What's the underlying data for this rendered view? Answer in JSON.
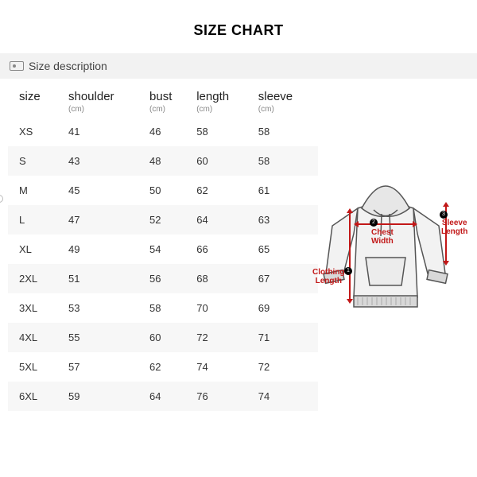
{
  "title": "SIZE CHART",
  "description_label": "Size description",
  "table": {
    "columns": [
      {
        "label": "size",
        "unit": ""
      },
      {
        "label": "shoulder",
        "unit": "(cm)"
      },
      {
        "label": "bust",
        "unit": "(cm)"
      },
      {
        "label": "length",
        "unit": "(cm)"
      },
      {
        "label": "sleeve",
        "unit": "(cm)"
      }
    ],
    "rows": [
      [
        "XS",
        "41",
        "46",
        "58",
        "58"
      ],
      [
        "S",
        "43",
        "48",
        "60",
        "58"
      ],
      [
        "M",
        "45",
        "50",
        "62",
        "61"
      ],
      [
        "L",
        "47",
        "52",
        "64",
        "63"
      ],
      [
        "XL",
        "49",
        "54",
        "66",
        "65"
      ],
      [
        "2XL",
        "51",
        "56",
        "68",
        "67"
      ],
      [
        "3XL",
        "53",
        "58",
        "70",
        "69"
      ],
      [
        "4XL",
        "55",
        "60",
        "72",
        "71"
      ],
      [
        "5XL",
        "57",
        "62",
        "74",
        "72"
      ],
      [
        "6XL",
        "59",
        "64",
        "76",
        "74"
      ]
    ]
  },
  "diagram": {
    "chest_label_l1": "Chest",
    "chest_label_l2": "Width",
    "length_label_l1": "Clothing",
    "length_label_l2": "Length",
    "sleeve_label_l1": "Sleeve",
    "sleeve_label_l2": "Length",
    "dot1": "1",
    "dot2": "2",
    "dot3": "3",
    "label_color": "#c21818",
    "stroke_color": "#555555",
    "fill_light": "#f2f2f2",
    "fill_rib": "#d8d8d8"
  },
  "style": {
    "background": "#ffffff",
    "alt_row": "#f7f7f7",
    "bar_bg": "#f2f2f2",
    "text": "#333333",
    "muted": "#888888"
  }
}
